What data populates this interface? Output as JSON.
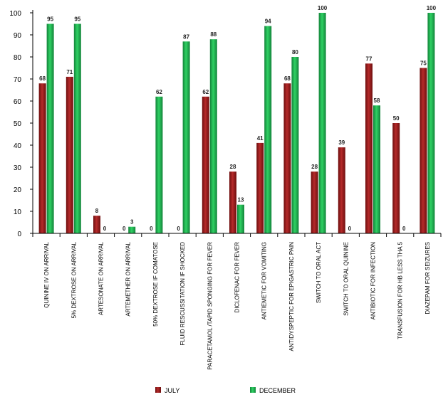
{
  "chart_data": {
    "type": "bar",
    "categories": [
      "QUININE IV ON ARRIVAL",
      "5% DEXTROSE ON ARRIVAL",
      "ARTESONATE ON ARRIVAL",
      "ARTEMETHER ON ARRIVAL",
      "50% DEXTROSE  IF COMATOSE",
      "FLUID RESCUSSITATION IF SHOCKED",
      "PARACETAMOL /TAPID SPONGING FOR FEVER",
      "DICLOFENAC FOR FEVER",
      "ANTIEMETIC FOR VOMITING",
      "ANTIDYSPEPTIC FOR EPIGASTRIC PAIN",
      "SWITCH TO ORAL ACT",
      "SWITCH TO ORAL QUININE",
      "ANTIBIOTIC FOR INFECTION",
      "TRANSFUSION FOR HB LESS THA 5",
      "DIAZEPAM FOR SEIZURES"
    ],
    "series": [
      {
        "name": "JULY",
        "color": "#9b1f1f",
        "values": [
          68,
          71,
          8,
          0,
          0,
          0,
          62,
          28,
          41,
          68,
          28,
          39,
          77,
          50,
          75
        ]
      },
      {
        "name": "DECEMBER",
        "color": "#1fae4b",
        "values": [
          95,
          95,
          0,
          3,
          62,
          87,
          88,
          13,
          94,
          80,
          100,
          0,
          58,
          0,
          100
        ]
      }
    ],
    "ylim": [
      0,
      100
    ],
    "yticks": [
      0,
      10,
      20,
      30,
      40,
      50,
      60,
      70,
      80,
      90,
      100
    ],
    "title": "",
    "xlabel": "",
    "ylabel": "",
    "grid": false,
    "legend_position": "bottom"
  }
}
